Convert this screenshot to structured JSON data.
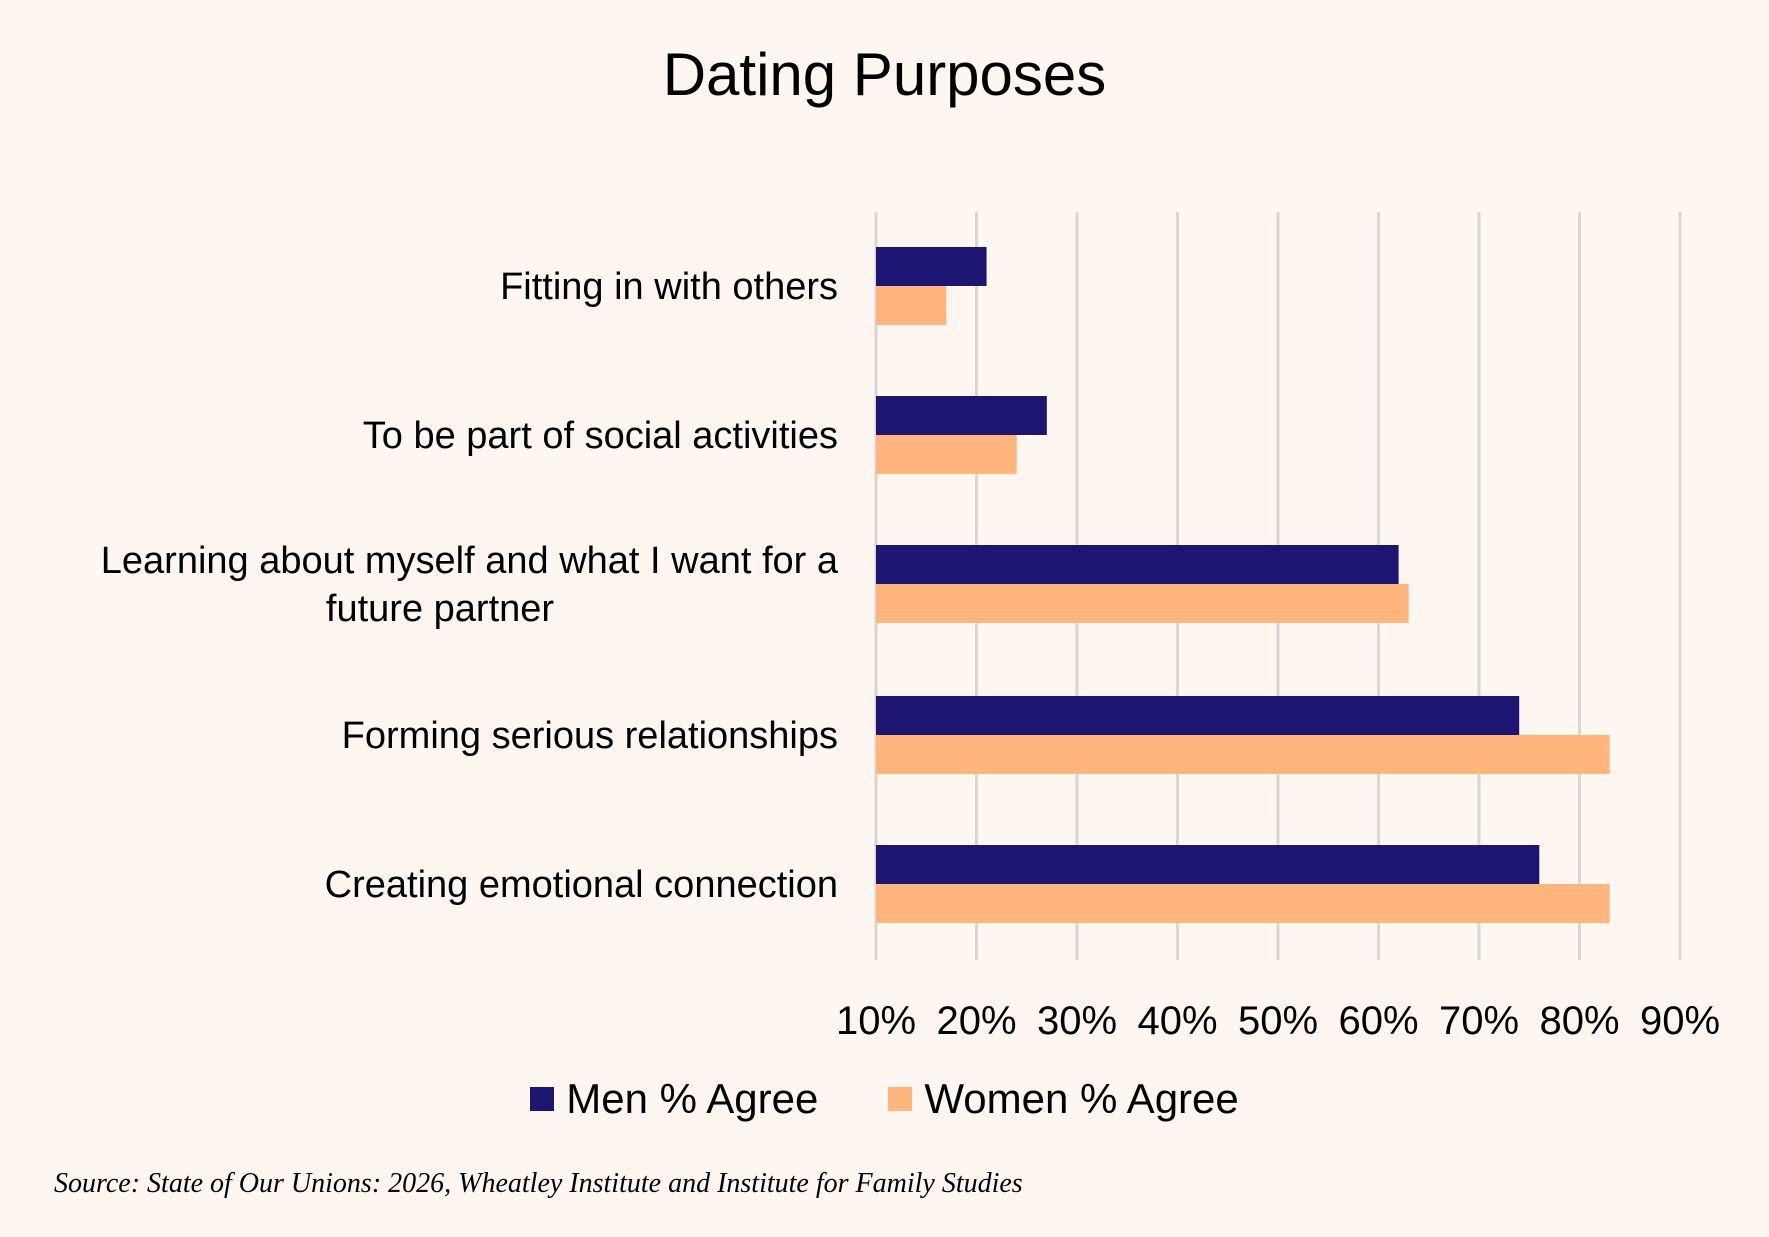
{
  "chart_data": {
    "type": "bar",
    "orientation": "horizontal",
    "title": "Dating Purposes",
    "categories": [
      "Fitting in with others",
      "To be part of social activities",
      "Learning about myself and what I want for a future partner",
      "Forming serious relationships",
      "Creating emotional connection"
    ],
    "series": [
      {
        "name": "Men % Agree",
        "color": "#1c1672",
        "values": [
          21,
          27,
          62,
          74,
          76
        ]
      },
      {
        "name": "Women % Agree",
        "color": "#ffb57b",
        "values": [
          17,
          24,
          63,
          83,
          83
        ]
      }
    ],
    "xlim": [
      10,
      90
    ],
    "xticks": [
      "10%",
      "20%",
      "30%",
      "40%",
      "50%",
      "60%",
      "70%",
      "80%",
      "90%"
    ],
    "grid": true,
    "legend_position": "bottom",
    "source": "Source: State of Our Unions: 2026, Wheatley Institute and Institute for Family Studies"
  }
}
